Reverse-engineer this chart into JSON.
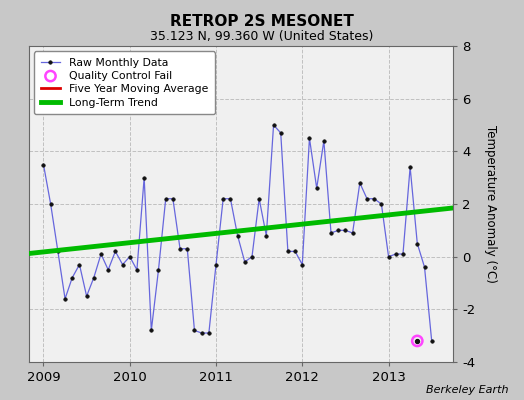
{
  "title": "RETROP 2S MESONET",
  "subtitle": "35.123 N, 99.360 W (United States)",
  "ylabel": "Temperature Anomaly (°C)",
  "credit": "Berkeley Earth",
  "xlim": [
    2008.83,
    2013.75
  ],
  "ylim": [
    -4,
    8
  ],
  "yticks": [
    -4,
    -2,
    0,
    2,
    4,
    6,
    8
  ],
  "xticks": [
    2009,
    2010,
    2011,
    2012,
    2013
  ],
  "fig_bg_color": "#c8c8c8",
  "plot_bg_color": "#f0f0f0",
  "raw_x": [
    2009.0,
    2009.083,
    2009.167,
    2009.25,
    2009.333,
    2009.417,
    2009.5,
    2009.583,
    2009.667,
    2009.75,
    2009.833,
    2009.917,
    2010.0,
    2010.083,
    2010.167,
    2010.25,
    2010.333,
    2010.417,
    2010.5,
    2010.583,
    2010.667,
    2010.75,
    2010.833,
    2010.917,
    2011.0,
    2011.083,
    2011.167,
    2011.25,
    2011.333,
    2011.417,
    2011.5,
    2011.583,
    2011.667,
    2011.75,
    2011.833,
    2011.917,
    2012.0,
    2012.083,
    2012.167,
    2012.25,
    2012.333,
    2012.417,
    2012.5,
    2012.583,
    2012.667,
    2012.75,
    2012.833,
    2012.917,
    2013.0,
    2013.083,
    2013.167,
    2013.25,
    2013.333,
    2013.417,
    2013.5
  ],
  "raw_y": [
    3.5,
    2.0,
    0.2,
    -1.6,
    -0.8,
    -0.3,
    -1.5,
    -0.8,
    0.1,
    -0.5,
    0.2,
    -0.3,
    0.0,
    -0.5,
    3.0,
    -2.8,
    -0.5,
    2.2,
    2.2,
    0.3,
    0.3,
    -2.8,
    -2.9,
    -2.9,
    -0.3,
    2.2,
    2.2,
    0.8,
    -0.2,
    0.0,
    2.2,
    0.8,
    5.0,
    4.7,
    0.2,
    0.2,
    -0.3,
    4.5,
    2.6,
    4.4,
    0.9,
    1.0,
    1.0,
    0.9,
    2.8,
    2.2,
    2.2,
    2.0,
    0.0,
    0.1,
    0.1,
    3.4,
    0.5,
    -0.4,
    -3.2
  ],
  "qc_fail_x": [
    2013.333
  ],
  "qc_fail_y": [
    -3.2
  ],
  "trend_x": [
    2008.83,
    2013.75
  ],
  "trend_y": [
    0.12,
    1.85
  ],
  "raw_line_color": "#6666dd",
  "raw_marker_color": "#111111",
  "trend_color": "#00bb00",
  "moving_avg_color": "#dd0000",
  "qc_color": "#ff44ff",
  "legend_loc": "upper left"
}
